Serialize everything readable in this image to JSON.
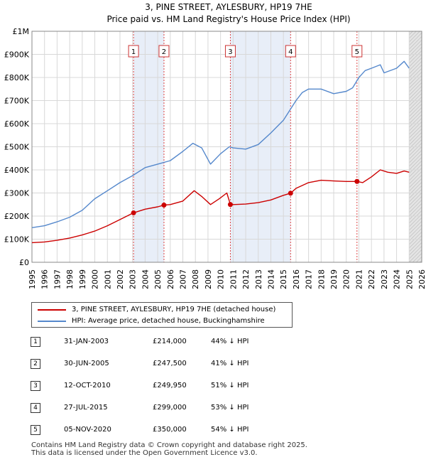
{
  "chart_data": {
    "type": "line",
    "title": "3, PINE STREET, AYLESBURY, HP19 7HE",
    "subtitle": "Price paid vs. HM Land Registry's House Price Index (HPI)",
    "xlim": [
      1995,
      2026
    ],
    "ylim": [
      0,
      1000000
    ],
    "y_ticks": [
      0,
      100000,
      200000,
      300000,
      400000,
      500000,
      600000,
      700000,
      800000,
      900000,
      1000000
    ],
    "y_tick_labels": [
      "£0",
      "£100K",
      "£200K",
      "£300K",
      "£400K",
      "£500K",
      "£600K",
      "£700K",
      "£800K",
      "£900K",
      "£1M"
    ],
    "x_ticks": [
      1995,
      1996,
      1997,
      1998,
      1999,
      2000,
      2001,
      2002,
      2003,
      2004,
      2005,
      2006,
      2007,
      2008,
      2009,
      2010,
      2011,
      2012,
      2013,
      2014,
      2015,
      2016,
      2017,
      2018,
      2019,
      2020,
      2021,
      2022,
      2023,
      2024,
      2025,
      2026
    ],
    "grid": true,
    "series": [
      {
        "name": "3, PINE STREET, AYLESBURY, HP19 7HE (detached house)",
        "color": "#cc0000",
        "x": [
          1995.0,
          1996.0,
          1997.0,
          1998.0,
          1999.0,
          2000.0,
          2001.0,
          2002.0,
          2003.08,
          2004.0,
          2005.0,
          2005.5,
          2006.0,
          2007.0,
          2007.9,
          2008.5,
          2009.2,
          2009.9,
          2010.5,
          2010.78,
          2011.0,
          2012.0,
          2013.0,
          2014.0,
          2015.0,
          2015.57,
          2016.0,
          2017.0,
          2018.0,
          2019.0,
          2020.0,
          2020.85,
          2021.3,
          2022.0,
          2022.7,
          2023.3,
          2024.0,
          2024.6,
          2025.0
        ],
        "values": [
          85000,
          88000,
          95000,
          105000,
          118000,
          135000,
          158000,
          185000,
          214000,
          230000,
          240000,
          247500,
          250000,
          265000,
          310000,
          285000,
          250000,
          275000,
          300000,
          249950,
          250000,
          252000,
          258000,
          270000,
          290000,
          299000,
          320000,
          345000,
          355000,
          352000,
          350000,
          350000,
          345000,
          370000,
          400000,
          390000,
          385000,
          395000,
          390000
        ]
      },
      {
        "name": "HPI: Average price, detached house, Buckinghamshire",
        "color": "#5588cc",
        "x": [
          1995.0,
          1996.0,
          1997.0,
          1998.0,
          1999.0,
          2000.0,
          2001.0,
          2002.0,
          2003.0,
          2004.0,
          2005.0,
          2006.0,
          2007.0,
          2007.8,
          2008.5,
          2009.2,
          2010.0,
          2010.7,
          2011.0,
          2012.0,
          2013.0,
          2014.0,
          2015.0,
          2016.0,
          2016.5,
          2017.0,
          2018.0,
          2019.0,
          2020.0,
          2020.5,
          2021.0,
          2021.5,
          2022.0,
          2022.7,
          2023.0,
          2024.0,
          2024.6,
          2025.0
        ],
        "values": [
          150000,
          158000,
          175000,
          195000,
          225000,
          275000,
          310000,
          345000,
          375000,
          410000,
          425000,
          440000,
          480000,
          515000,
          495000,
          425000,
          470000,
          500000,
          495000,
          490000,
          510000,
          560000,
          615000,
          700000,
          735000,
          750000,
          750000,
          730000,
          740000,
          755000,
          800000,
          830000,
          840000,
          855000,
          820000,
          840000,
          870000,
          840000
        ]
      }
    ],
    "sales": [
      {
        "num": "1",
        "x": 2003.08,
        "price": 214000
      },
      {
        "num": "2",
        "x": 2005.5,
        "price": 247500
      },
      {
        "num": "3",
        "x": 2010.78,
        "price": 249950
      },
      {
        "num": "4",
        "x": 2015.57,
        "price": 299000
      },
      {
        "num": "5",
        "x": 2020.85,
        "price": 350000
      }
    ],
    "shaded_ranges": [
      [
        2003.08,
        2005.5
      ],
      [
        2010.78,
        2015.57
      ],
      [
        2025.0,
        2026.0
      ]
    ]
  },
  "legend": {
    "property_label": "3, PINE STREET, AYLESBURY, HP19 7HE (detached house)",
    "hpi_label": "HPI: Average price, detached house, Buckinghamshire",
    "property_color": "#cc0000",
    "hpi_color": "#5588cc"
  },
  "sales_table": [
    {
      "num": "1",
      "date": "31-JAN-2003",
      "price": "£214,000",
      "hpi": "44% ↓ HPI"
    },
    {
      "num": "2",
      "date": "30-JUN-2005",
      "price": "£247,500",
      "hpi": "41% ↓ HPI"
    },
    {
      "num": "3",
      "date": "12-OCT-2010",
      "price": "£249,950",
      "hpi": "51% ↓ HPI"
    },
    {
      "num": "4",
      "date": "27-JUL-2015",
      "price": "£299,000",
      "hpi": "53% ↓ HPI"
    },
    {
      "num": "5",
      "date": "05-NOV-2020",
      "price": "£350,000",
      "hpi": "54% ↓ HPI"
    }
  ],
  "footer": {
    "line1": "Contains HM Land Registry data © Crown copyright and database right 2025.",
    "line2": "This data is licensed under the Open Government Licence v3.0."
  }
}
